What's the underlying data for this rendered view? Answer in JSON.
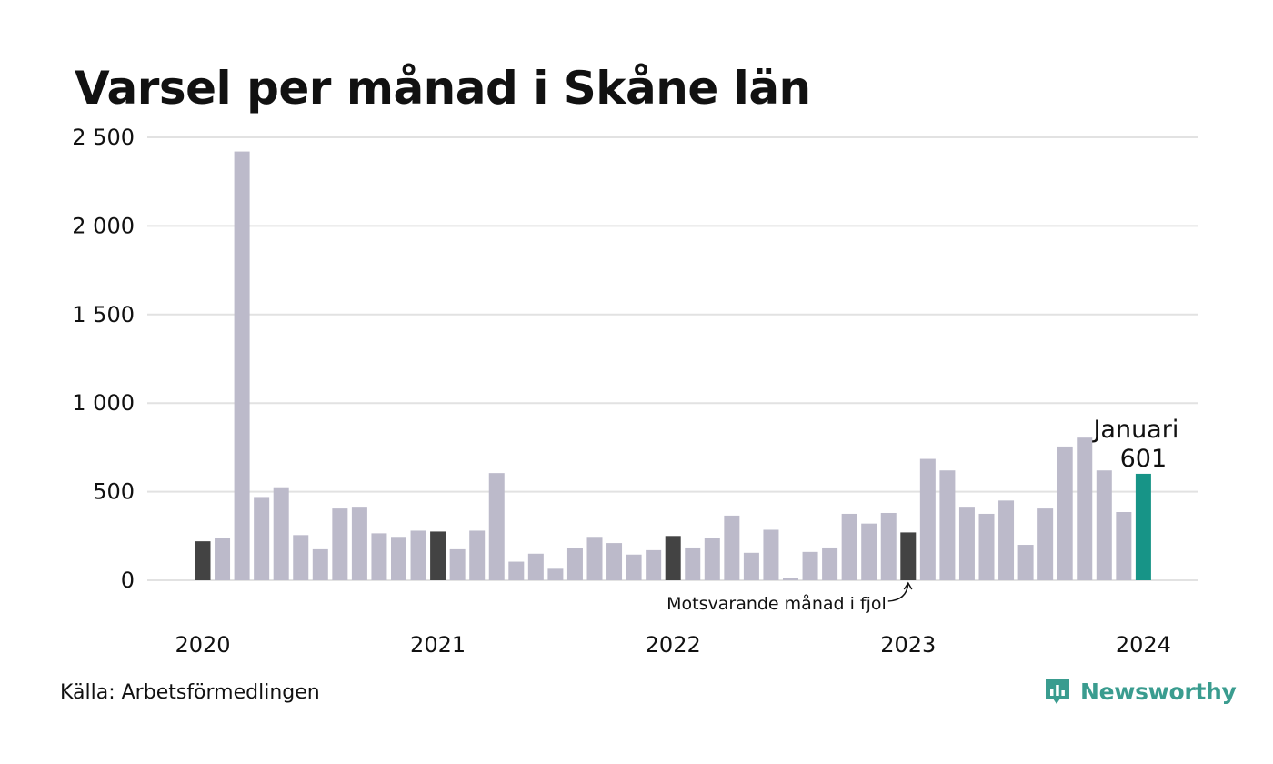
{
  "title": "Varsel per månad i Skåne län",
  "source": "Källa: Arbetsförmedlingen",
  "brand": {
    "name": "Newsworthy",
    "icon": "newsworthy-logo-icon"
  },
  "colors": {
    "default": "#bcbaca",
    "same_month": "#434343",
    "highlight": "#179487",
    "grid": "#e2e2e2"
  },
  "chart_data": {
    "type": "bar",
    "x_tick_labels": [
      "2020",
      "2021",
      "2022",
      "2023",
      "2024"
    ],
    "y_tick_labels": [
      "0",
      "500",
      "1 000",
      "1 500",
      "2 000",
      "2 500"
    ],
    "y_ticks": [
      0,
      500,
      1000,
      1500,
      2000,
      2500
    ],
    "ylim": [
      0,
      2500
    ],
    "grid": true,
    "categories": [
      "2020-01",
      "2020-02",
      "2020-03",
      "2020-04",
      "2020-05",
      "2020-06",
      "2020-07",
      "2020-08",
      "2020-09",
      "2020-10",
      "2020-11",
      "2020-12",
      "2021-01",
      "2021-02",
      "2021-03",
      "2021-04",
      "2021-05",
      "2021-06",
      "2021-07",
      "2021-08",
      "2021-09",
      "2021-10",
      "2021-11",
      "2021-12",
      "2022-01",
      "2022-02",
      "2022-03",
      "2022-04",
      "2022-05",
      "2022-06",
      "2022-07",
      "2022-08",
      "2022-09",
      "2022-10",
      "2022-11",
      "2022-12",
      "2023-01",
      "2023-02",
      "2023-03",
      "2023-04",
      "2023-05",
      "2023-06",
      "2023-07",
      "2023-08",
      "2023-09",
      "2023-10",
      "2023-11",
      "2023-12",
      "2024-01"
    ],
    "values": [
      220,
      240,
      2420,
      470,
      525,
      255,
      175,
      405,
      415,
      265,
      245,
      280,
      275,
      175,
      280,
      605,
      105,
      150,
      65,
      180,
      245,
      210,
      145,
      170,
      250,
      185,
      240,
      365,
      155,
      285,
      15,
      160,
      185,
      375,
      320,
      380,
      270,
      685,
      620,
      415,
      375,
      450,
      200,
      405,
      755,
      805,
      620,
      385,
      601
    ],
    "same_month_indices": [
      0,
      12,
      24,
      36
    ],
    "highlight_index": 48,
    "annotations": {
      "highlight_label": "Januari",
      "highlight_value": "601",
      "same_month_label": "Motsvarande månad i fjol"
    }
  }
}
